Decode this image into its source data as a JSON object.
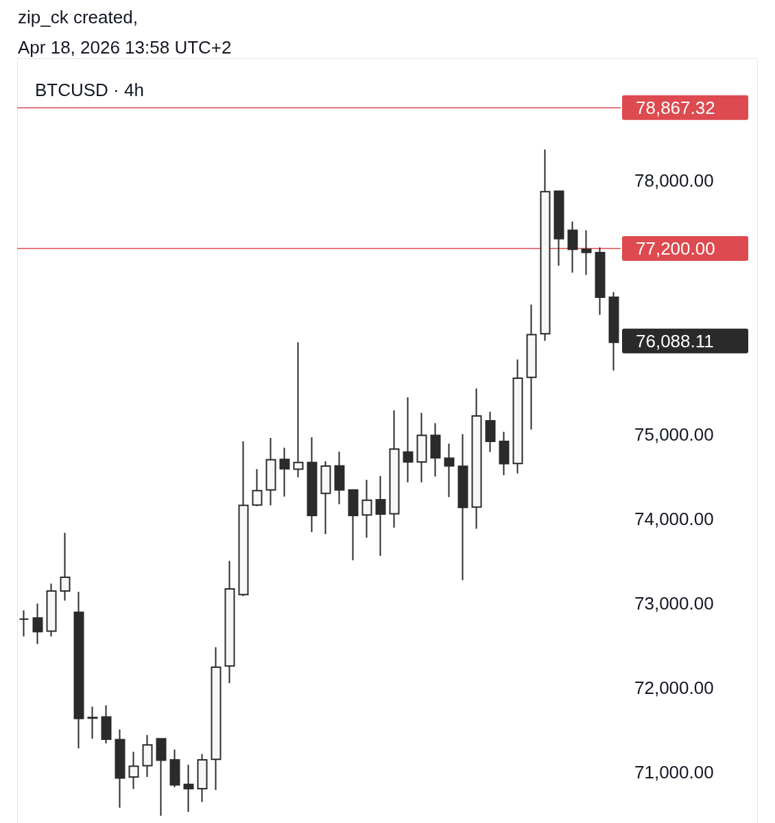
{
  "chart_data": {
    "type": "candlestick",
    "title": "BTCUSD · 4h",
    "annotations": [
      "zip_ck created,",
      "Apr 18, 2026 13:58 UTC+2",
      "76,088.11"
    ],
    "categories": [
      null,
      null,
      null,
      null,
      null,
      null,
      null,
      null,
      null,
      null,
      null,
      null,
      null,
      null,
      null,
      null,
      null,
      null,
      null,
      null,
      null,
      null,
      null,
      null,
      null,
      null,
      null,
      null,
      null,
      null,
      null,
      null,
      null,
      null,
      null,
      null,
      null,
      null,
      null,
      null,
      null,
      null,
      null,
      null
    ],
    "ohlc": [
      [
        72813,
        72916,
        72608,
        72813
      ],
      [
        72827,
        72997,
        72518,
        72665
      ],
      [
        72670,
        73233,
        72608,
        73146
      ],
      [
        73146,
        73834,
        73032,
        73308
      ],
      [
        72894,
        73135,
        71284,
        71636
      ],
      [
        71650,
        71776,
        71398,
        71640
      ],
      [
        71655,
        71793,
        71342,
        71392
      ],
      [
        71387,
        71506,
        70580,
        70932
      ],
      [
        70945,
        71243,
        70802,
        71073
      ],
      [
        71078,
        71441,
        70945,
        71324
      ],
      [
        71398,
        71406,
        70486,
        71143
      ],
      [
        71148,
        71270,
        70823,
        70851
      ],
      [
        70856,
        71089,
        70532,
        70807
      ],
      [
        70807,
        71216,
        70648,
        71148
      ],
      [
        71154,
        72480,
        70791,
        72245
      ],
      [
        72258,
        73501,
        72055,
        73170
      ],
      [
        73103,
        74916,
        73084,
        74159
      ],
      [
        74164,
        74587,
        74150,
        74335
      ],
      [
        74343,
        74957,
        74159,
        74700
      ],
      [
        74703,
        74841,
        74262,
        74592
      ],
      [
        74587,
        76089,
        74492,
        74668
      ],
      [
        74668,
        74965,
        73842,
        74039
      ],
      [
        74302,
        74681,
        73820,
        74624
      ],
      [
        74627,
        74795,
        74173,
        74343
      ],
      [
        74343,
        74351,
        73509,
        74039
      ],
      [
        74045,
        74462,
        73775,
        74221
      ],
      [
        74226,
        74506,
        73563,
        74056
      ],
      [
        74059,
        75285,
        73896,
        74825
      ],
      [
        74790,
        75439,
        74432,
        74673
      ],
      [
        74673,
        75255,
        74432,
        74987
      ],
      [
        74987,
        75133,
        74500,
        74722
      ],
      [
        74717,
        74890,
        74256,
        74627
      ],
      [
        74622,
        75003,
        73274,
        74134
      ],
      [
        74140,
        75542,
        73883,
        75217
      ],
      [
        75160,
        75269,
        74790,
        74916
      ],
      [
        74916,
        75030,
        74516,
        74652
      ],
      [
        74654,
        75886,
        74538,
        75664
      ],
      [
        75675,
        76536,
        75058,
        76181
      ],
      [
        76191,
        78371,
        76108,
        77872
      ],
      [
        77878,
        77878,
        76995,
        77315
      ],
      [
        77415,
        77518,
        76914,
        77190
      ],
      [
        77190,
        77415,
        76887,
        77153
      ],
      [
        77150,
        77212,
        76414,
        76622
      ],
      [
        76622,
        76684,
        75756,
        76088.11
      ]
    ],
    "colors": [
      "#2b2b2b",
      "#2b2b2b",
      "#f7f7f7",
      "#f7f7f7",
      "#2b2b2b",
      "#2b2b2b",
      "#2b2b2b",
      "#2b2b2b",
      "#f7f7f7",
      "#f7f7f7",
      "#2b2b2b",
      "#2b2b2b",
      "#2b2b2b",
      "#f7f7f7",
      "#f7f7f7",
      "#f7f7f7",
      "#f7f7f7",
      "#f7f7f7",
      "#f7f7f7",
      "#2b2b2b",
      "#f7f7f7",
      "#2b2b2b",
      "#f7f7f7",
      "#2b2b2b",
      "#2b2b2b",
      "#f7f7f7",
      "#2b2b2b",
      "#f7f7f7",
      "#2b2b2b",
      "#f7f7f7",
      "#2b2b2b",
      "#2b2b2b",
      "#2b2b2b",
      "#f7f7f7",
      "#2b2b2b",
      "#2b2b2b",
      "#f7f7f7",
      "#f7f7f7",
      "#f7f7f7",
      "#2b2b2b",
      "#2b2b2b",
      "#2b2b2b",
      "#2b2b2b",
      "#2b2b2b"
    ],
    "ylim": [
      70400,
      79450
    ],
    "yticks": [
      {
        "value": 71000,
        "label": "71,000.00"
      },
      {
        "value": 72000,
        "label": "72,000.00"
      },
      {
        "value": 73000,
        "label": "73,000.00"
      },
      {
        "value": 74000,
        "label": "74,000.00"
      },
      {
        "value": 75000,
        "label": "75,000.00"
      },
      {
        "value": 78000,
        "label": "78,000.00"
      }
    ],
    "tick_labels": "y",
    "grid": false,
    "ref_lines": [
      {
        "axis": "y",
        "value": 78867.32,
        "label": "78,867.32",
        "color": "#dd4a4f",
        "line_style": "solid"
      },
      {
        "axis": "y",
        "value": 77200,
        "label": "77,200.00",
        "color": "#dd4a4f",
        "line_style": "solid"
      }
    ]
  }
}
